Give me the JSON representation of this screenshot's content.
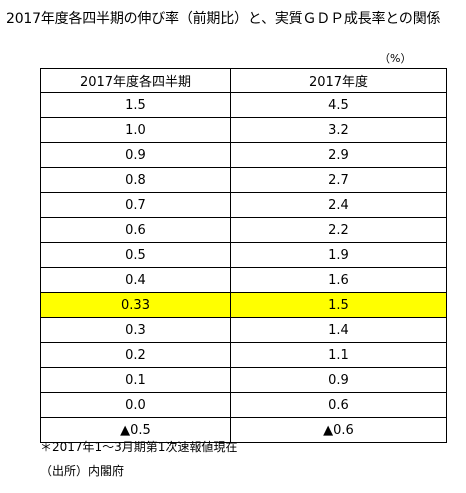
{
  "document": {
    "title": "2017年度各四半期の伸び率（前期比）と、実質ＧＤＰ成長率との関係",
    "unit": "（%）",
    "highlight_color": "#ffff00"
  },
  "table": {
    "headers": [
      "2017年度各四半期",
      "2017年度"
    ],
    "rows": [
      [
        "1.5",
        "4.5"
      ],
      [
        "1.0",
        "3.2"
      ],
      [
        "0.9",
        "2.9"
      ],
      [
        "0.8",
        "2.7"
      ],
      [
        "0.7",
        "2.4"
      ],
      [
        "0.6",
        "2.2"
      ],
      [
        "0.5",
        "1.9"
      ],
      [
        "0.4",
        "1.6"
      ],
      [
        "0.33",
        "1.5"
      ],
      [
        "0.3",
        "1.4"
      ],
      [
        "0.2",
        "1.1"
      ],
      [
        "0.1",
        "0.9"
      ],
      [
        "0.0",
        "0.6"
      ],
      [
        "▲0.5",
        "▲0.6"
      ]
    ],
    "highlighted_row": 8
  },
  "notes": {
    "footnote": "＊2017年1～3月期第1次速報値現在",
    "source": "（出所）内閣府"
  }
}
